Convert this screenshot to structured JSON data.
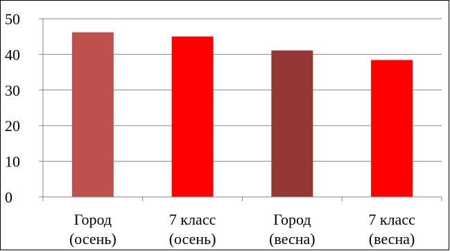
{
  "chart_data": {
    "type": "bar",
    "categories": [
      [
        "Город",
        "(осень)"
      ],
      [
        "7 класс",
        "(осень)"
      ],
      [
        "Город",
        "(весна)"
      ],
      [
        "7 класс",
        "(весна)"
      ]
    ],
    "values": [
      46.2,
      45.0,
      41.1,
      38.4
    ],
    "bar_colors": [
      "#C0504D",
      "#FF0000",
      "#953735",
      "#FF0000"
    ],
    "ylim": [
      0,
      50
    ],
    "yticks": [
      0,
      10,
      20,
      30,
      40,
      50
    ],
    "grid": true,
    "gridline_color": "#868686",
    "title": "",
    "xlabel": "",
    "ylabel": ""
  }
}
